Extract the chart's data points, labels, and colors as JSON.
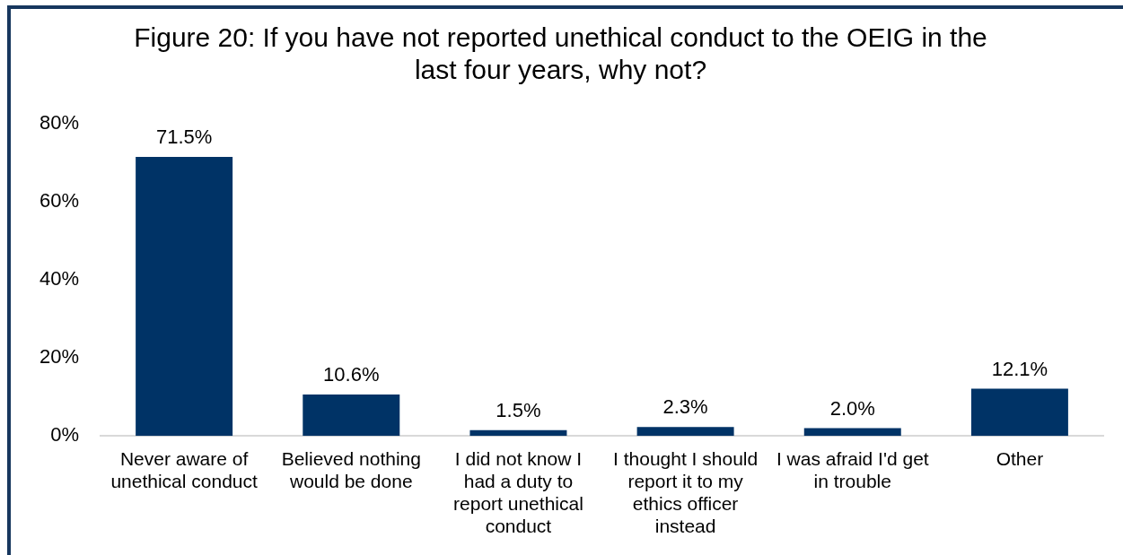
{
  "chart_data": {
    "type": "bar",
    "title": "Figure 20: If you have not reported unethical conduct to the OEIG in the last four years, why not?",
    "categories": [
      "Never aware of unethical conduct",
      "Believed nothing would be done",
      "I did not know I had a duty to report unethical conduct",
      "I thought I should report it to my ethics officer instead",
      "I was afraid I'd get in trouble",
      "Other"
    ],
    "values": [
      71.5,
      10.6,
      1.5,
      2.3,
      2.0,
      12.1
    ],
    "value_labels": [
      "71.5%",
      "10.6%",
      "1.5%",
      "2.3%",
      "2.0%",
      "12.1%"
    ],
    "color": "#003366",
    "ylim": [
      0,
      80
    ],
    "yticks": [
      {
        "value": 0,
        "label": "0%"
      },
      {
        "value": 20,
        "label": "20%"
      },
      {
        "value": 40,
        "label": "40%"
      },
      {
        "value": 60,
        "label": "60%"
      },
      {
        "value": 80,
        "label": "80%"
      }
    ],
    "grid": false,
    "legend": false
  }
}
